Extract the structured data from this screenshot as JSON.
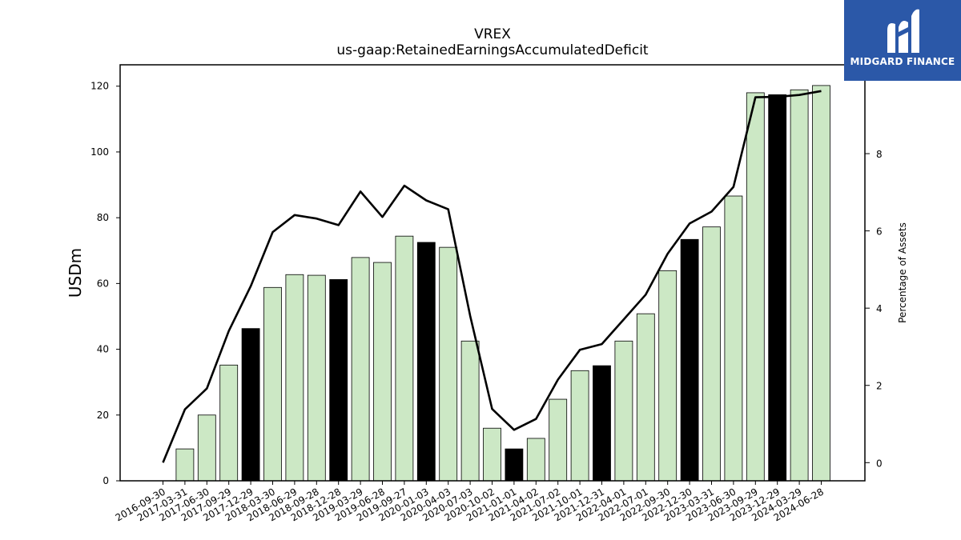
{
  "chart_data": {
    "type": "bar",
    "title": "VREX",
    "subtitle": "us-gaap:RetainedEarningsAccumulatedDeficit",
    "ylabel": "USDm",
    "y2label": "Percentage of Assets",
    "ylim": [
      0,
      126.5
    ],
    "y2lim": [
      -0.47,
      10.3
    ],
    "yticks": [
      0,
      20,
      40,
      60,
      80,
      100,
      120
    ],
    "y2ticks": [
      0,
      2,
      4,
      6,
      8
    ],
    "categories": [
      "2016-09-30",
      "2017-03-31",
      "2017-06-30",
      "2017-09-29",
      "2017-12-29",
      "2018-03-30",
      "2018-06-29",
      "2018-09-28",
      "2018-12-28",
      "2019-03-29",
      "2019-06-28",
      "2019-09-27",
      "2020-01-03",
      "2020-04-03",
      "2020-07-03",
      "2020-10-02",
      "2021-01-01",
      "2021-04-02",
      "2021-07-02",
      "2021-10-01",
      "2021-12-31",
      "2022-04-01",
      "2022-07-01",
      "2022-09-30",
      "2022-12-30",
      "2023-03-31",
      "2023-06-30",
      "2023-09-29",
      "2023-12-29",
      "2024-03-29",
      "2024-06-28"
    ],
    "series": [
      {
        "values": [
          0,
          9.7,
          20.0,
          35.2,
          46.3,
          58.8,
          62.7,
          62.5,
          61.2,
          67.9,
          66.4,
          74.4,
          72.5,
          71.0,
          42.5,
          16.0,
          9.7,
          12.9,
          24.8,
          33.5,
          35.0,
          42.5,
          50.8,
          63.9,
          73.4,
          77.2,
          86.6,
          118.0,
          117.4,
          118.9,
          120.2
        ],
        "highlight": [
          false,
          false,
          false,
          false,
          true,
          false,
          false,
          false,
          true,
          false,
          false,
          false,
          true,
          false,
          false,
          false,
          true,
          false,
          false,
          false,
          true,
          false,
          false,
          false,
          true,
          false,
          false,
          false,
          true,
          false,
          false
        ]
      },
      {
        "axis": "right",
        "type": "line",
        "values": [
          0.0,
          1.38,
          1.92,
          3.41,
          4.57,
          5.97,
          6.41,
          6.32,
          6.15,
          7.02,
          6.36,
          7.17,
          6.79,
          6.56,
          3.8,
          1.39,
          0.85,
          1.13,
          2.15,
          2.92,
          3.07,
          3.71,
          4.35,
          5.41,
          6.19,
          6.5,
          7.14,
          9.46,
          9.47,
          9.52,
          9.62
        ]
      }
    ],
    "colors": {
      "bar": "#cce8c5",
      "bar_highlight": "#000000",
      "line": "#000000"
    },
    "grid": false
  },
  "logo": {
    "text": "MIDGARD FINANCE",
    "bg": "#2b58a8",
    "icon": "midgard-logo-icon"
  }
}
